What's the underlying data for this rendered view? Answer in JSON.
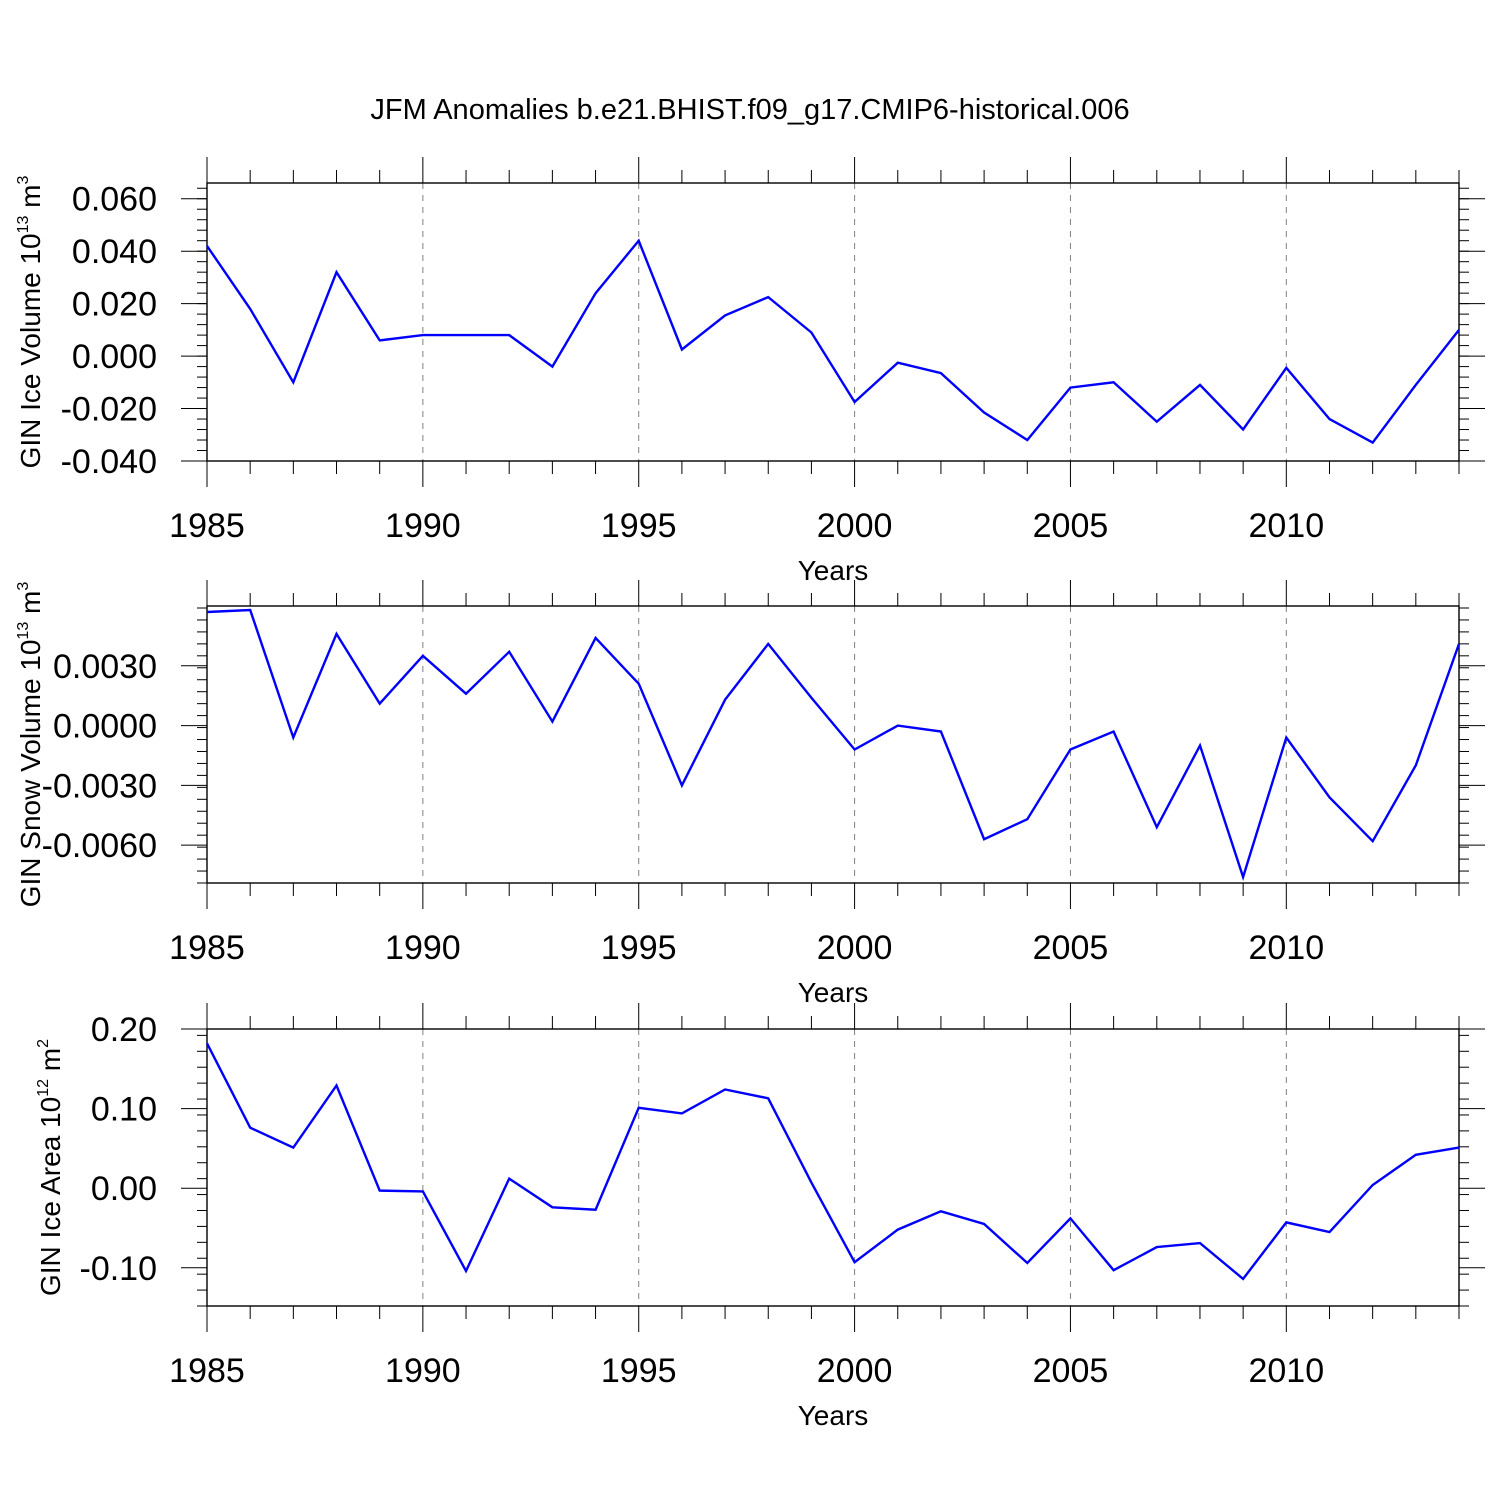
{
  "title": "JFM Anomalies b.e21.BHIST.f09_g17.CMIP6-historical.006",
  "series_color": "#0000ff",
  "chart_data": [
    {
      "type": "line",
      "name": "ice-volume",
      "ylabel": "GIN Ice Volume 10",
      "ylabel_exp": "13",
      "ylabel_unit": " m",
      "ylabel_unit_exp": "3",
      "xlabel": "Years",
      "xlim": [
        1985,
        2014
      ],
      "ylim": [
        -0.04,
        0.066
      ],
      "xticks": [
        1985,
        1990,
        1995,
        2000,
        2005,
        2010
      ],
      "xtick_labels": [
        "1985",
        "1990",
        "1995",
        "2000",
        "2005",
        "2010"
      ],
      "yticks": [
        0.06,
        0.04,
        0.02,
        0.0,
        -0.02,
        -0.04
      ],
      "ytick_labels": [
        "0.060",
        "0.040",
        "0.020",
        "0.000",
        "-0.020",
        "-0.040"
      ],
      "x": [
        1985,
        1986,
        1987,
        1988,
        1989,
        1990,
        1991,
        1992,
        1993,
        1994,
        1995,
        1996,
        1997,
        1998,
        1999,
        2000,
        2001,
        2002,
        2003,
        2004,
        2005,
        2006,
        2007,
        2008,
        2009,
        2010,
        2011,
        2012,
        2013,
        2014
      ],
      "values": [
        0.042,
        0.018,
        -0.01,
        0.032,
        0.006,
        0.008,
        0.008,
        0.008,
        -0.004,
        0.024,
        0.044,
        0.0025,
        0.0155,
        0.0225,
        0.009,
        -0.0175,
        -0.0025,
        -0.0065,
        -0.0215,
        -0.032,
        -0.012,
        -0.01,
        -0.025,
        -0.011,
        -0.028,
        -0.0045,
        -0.024,
        -0.033,
        -0.011,
        0.01
      ]
    },
    {
      "type": "line",
      "name": "snow-volume",
      "ylabel": "GIN Snow Volume 10",
      "ylabel_exp": "13",
      "ylabel_unit": " m",
      "ylabel_unit_exp": "3",
      "xlabel": "Years",
      "xlim": [
        1985,
        2014
      ],
      "ylim": [
        -0.0079,
        0.006
      ],
      "xticks": [
        1985,
        1990,
        1995,
        2000,
        2005,
        2010
      ],
      "xtick_labels": [
        "1985",
        "1990",
        "1995",
        "2000",
        "2005",
        "2010"
      ],
      "yticks": [
        0.003,
        0.0,
        -0.003,
        -0.006
      ],
      "ytick_labels": [
        "0.0030",
        "0.0000",
        "-0.0030",
        "-0.0060"
      ],
      "x": [
        1985,
        1986,
        1987,
        1988,
        1989,
        1990,
        1991,
        1992,
        1993,
        1994,
        1995,
        1996,
        1997,
        1998,
        1999,
        2000,
        2001,
        2002,
        2003,
        2004,
        2005,
        2006,
        2007,
        2008,
        2009,
        2010,
        2011,
        2012,
        2013,
        2014
      ],
      "values": [
        0.0057,
        0.0058,
        -0.0006,
        0.0046,
        0.0011,
        0.0035,
        0.0016,
        0.0037,
        0.0002,
        0.0044,
        0.0021,
        -0.003,
        0.0013,
        0.0041,
        0.0014,
        -0.0012,
        0.0,
        -0.0003,
        -0.0057,
        -0.0047,
        -0.0012,
        -0.0003,
        -0.0051,
        -0.001,
        -0.0076,
        -0.0006,
        -0.0036,
        -0.0058,
        -0.002,
        0.0041
      ]
    },
    {
      "type": "line",
      "name": "ice-area",
      "ylabel": "GIN Ice Area 10",
      "ylabel_exp": "12",
      "ylabel_unit": " m",
      "ylabel_unit_exp": "2",
      "xlabel": "Years",
      "xlim": [
        1985,
        2014
      ],
      "ylim": [
        -0.148,
        0.2
      ],
      "xticks": [
        1985,
        1990,
        1995,
        2000,
        2005,
        2010
      ],
      "xtick_labels": [
        "1985",
        "1990",
        "1995",
        "2000",
        "2005",
        "2010"
      ],
      "yticks": [
        0.2,
        0.1,
        0.0,
        -0.1
      ],
      "ytick_labels": [
        "0.20",
        "0.10",
        "0.00",
        "-0.10"
      ],
      "x": [
        1985,
        1986,
        1987,
        1988,
        1989,
        1990,
        1991,
        1992,
        1993,
        1994,
        1995,
        1996,
        1997,
        1998,
        1999,
        2000,
        2001,
        2002,
        2003,
        2004,
        2005,
        2006,
        2007,
        2008,
        2009,
        2010,
        2011,
        2012,
        2013,
        2014
      ],
      "values": [
        0.182,
        0.076,
        0.051,
        0.129,
        -0.003,
        -0.004,
        -0.104,
        0.012,
        -0.024,
        -0.027,
        0.101,
        0.094,
        0.124,
        0.113,
        0.007,
        -0.093,
        -0.052,
        -0.029,
        -0.045,
        -0.094,
        -0.038,
        -0.103,
        -0.074,
        -0.069,
        -0.114,
        -0.043,
        -0.055,
        0.004,
        0.042,
        0.051
      ]
    }
  ]
}
